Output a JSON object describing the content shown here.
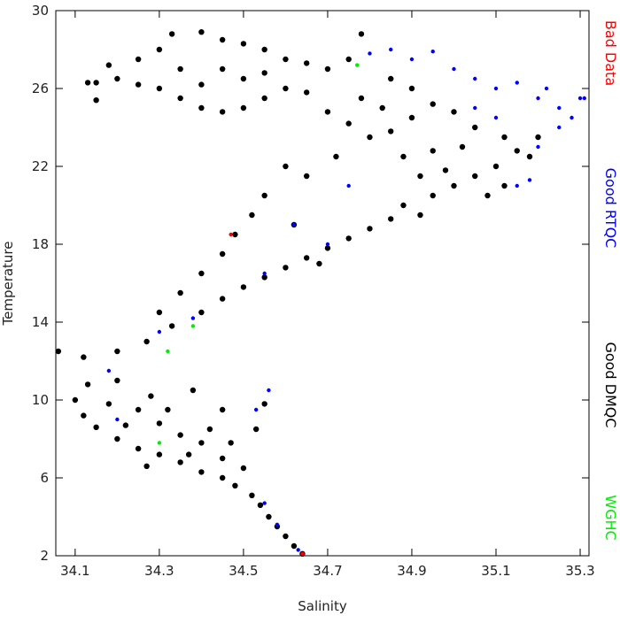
{
  "chart_data": {
    "type": "scatter",
    "x_label": "Salinity",
    "y_label": "Temperature",
    "xlim": [
      34.054,
      35.321
    ],
    "ylim": [
      2,
      30
    ],
    "xticks": [
      34.1,
      34.3,
      34.5,
      34.7,
      34.9,
      35.1,
      35.3
    ],
    "yticks": [
      2,
      6,
      10,
      14,
      18,
      22,
      26,
      30
    ],
    "legend": "right",
    "series": [
      {
        "name": "Good DMQC",
        "color": "#000000",
        "x": [
          34.64,
          34.62,
          34.6,
          34.58,
          34.56,
          34.54,
          34.52,
          34.48,
          34.45,
          34.4,
          34.35,
          34.3,
          34.25,
          34.2,
          34.15,
          34.12,
          34.1,
          34.13,
          34.2,
          34.25,
          34.3,
          34.35,
          34.4,
          34.45,
          34.5,
          34.53,
          34.55,
          34.45,
          34.38,
          34.28,
          34.18,
          34.22,
          34.32,
          34.42,
          34.47,
          34.37,
          34.27,
          34.06,
          34.12,
          34.2,
          34.27,
          34.33,
          34.4,
          34.45,
          34.5,
          34.55,
          34.6,
          34.65,
          34.7,
          34.75,
          34.8,
          34.85,
          34.3,
          34.35,
          34.4,
          34.45,
          34.48,
          34.52,
          34.55,
          34.6,
          34.65,
          34.72,
          34.62,
          34.68,
          34.88,
          34.92,
          34.95,
          35,
          35.05,
          35.1,
          35.15,
          35.12,
          35.05,
          35,
          34.95,
          34.9,
          34.85,
          34.8,
          34.75,
          34.7,
          34.88,
          34.95,
          35.02,
          34.98,
          34.92,
          35.08,
          35.12,
          35.18,
          35.2,
          34.83,
          34.78,
          34.65,
          34.6,
          34.55,
          34.5,
          34.45,
          34.4,
          34.35,
          34.3,
          34.25,
          34.2,
          34.15,
          34.13,
          34.18,
          34.25,
          34.3,
          34.33,
          34.4,
          34.45,
          34.5,
          34.55,
          34.6,
          34.65,
          34.7,
          34.75,
          34.78,
          34.85,
          34.9,
          34.35,
          34.45,
          34.55,
          34.5,
          34.4,
          34.15
        ],
        "values": [
          2.1,
          2.5,
          3,
          3.5,
          4,
          4.6,
          5.1,
          5.6,
          6,
          6.3,
          6.8,
          7.2,
          7.5,
          8,
          8.6,
          9.2,
          10,
          10.8,
          11,
          9.5,
          8.8,
          8.2,
          7.8,
          7,
          6.5,
          8.5,
          9.8,
          9.5,
          10.5,
          10.2,
          9.8,
          8.7,
          9.5,
          8.5,
          7.8,
          7.2,
          6.6,
          12.5,
          12.2,
          12.5,
          13,
          13.8,
          14.5,
          15.2,
          15.8,
          16.3,
          16.8,
          17.3,
          17.8,
          18.3,
          18.8,
          19.3,
          14.5,
          15.5,
          16.5,
          17.5,
          18.5,
          19.5,
          20.5,
          22,
          21.5,
          22.5,
          19,
          17,
          20,
          19.5,
          20.5,
          21,
          21.5,
          22,
          22.8,
          23.5,
          24,
          24.8,
          25.2,
          24.5,
          23.8,
          23.5,
          24.2,
          24.8,
          22.5,
          22.8,
          23,
          21.8,
          21.5,
          20.5,
          21,
          22.5,
          23.5,
          25,
          25.5,
          25.8,
          26,
          25.5,
          25,
          24.8,
          25,
          25.5,
          26,
          26.2,
          26.5,
          26.3,
          26.3,
          27.2,
          27.5,
          28,
          28.8,
          28.9,
          28.5,
          28.3,
          28,
          27.5,
          27.3,
          27,
          27.5,
          28.8,
          26.5,
          26,
          27,
          27,
          26.8,
          26.5,
          26.2,
          25.4
        ]
      },
      {
        "name": "Good RTQC",
        "color": "#0000ff",
        "x": [
          34.63,
          34.58,
          34.55,
          34.56,
          34.53,
          34.2,
          34.18,
          34.3,
          34.38,
          34.55,
          34.62,
          34.7,
          34.75,
          34.8,
          34.85,
          34.9,
          34.95,
          35,
          35.05,
          35.1,
          35.15,
          35.2,
          35.25,
          35.3,
          35.25,
          35.2,
          35.15,
          35.18,
          35.05,
          35.1,
          35.22,
          35.28,
          35.31
        ],
        "values": [
          2.3,
          3.6,
          4.7,
          10.5,
          9.5,
          9,
          11.5,
          13.5,
          14.2,
          16.5,
          19,
          18,
          21,
          27.8,
          28,
          27.5,
          27.9,
          27,
          26.5,
          26,
          26.3,
          25.5,
          25,
          25.5,
          24,
          23,
          21,
          21.3,
          25,
          24.5,
          26,
          24.5,
          25.5
        ]
      },
      {
        "name": "WGHC",
        "color": "#00ee00",
        "x": [
          34.77,
          34.38,
          34.32,
          34.3
        ],
        "values": [
          27.2,
          13.8,
          12.5,
          7.8
        ]
      },
      {
        "name": "Bad Data",
        "color": "#ff0000",
        "x": [
          34.47,
          34.64
        ],
        "values": [
          18.5,
          2.1
        ]
      }
    ]
  }
}
